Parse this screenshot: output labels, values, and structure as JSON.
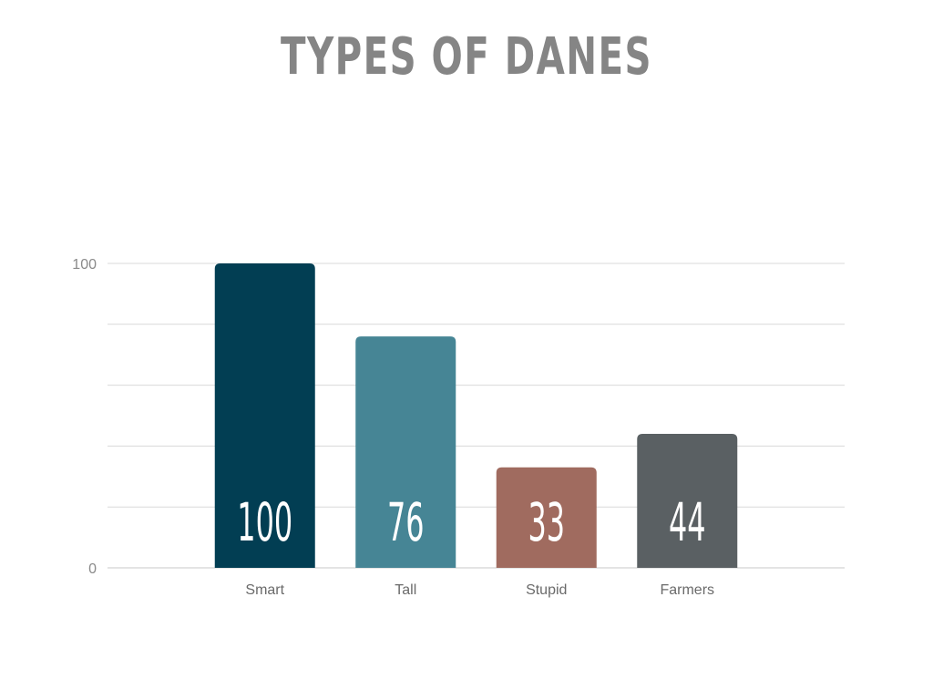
{
  "chart_data": {
    "type": "bar",
    "title": "TYPES OF DANES",
    "categories": [
      "Smart",
      "Tall",
      "Stupid",
      "Farmers"
    ],
    "values": [
      100,
      76,
      33,
      44
    ],
    "data_labels": [
      "100",
      "76",
      "33",
      "44"
    ],
    "colors": [
      "#023e53",
      "#468595",
      "#a06b5f",
      "#5a6063"
    ],
    "xlabel": "",
    "ylabel": "",
    "ylim": [
      0,
      100
    ],
    "y_tick_labels": [
      "0",
      "100"
    ],
    "gridline_step": 20,
    "grid": true,
    "legend": "none"
  }
}
